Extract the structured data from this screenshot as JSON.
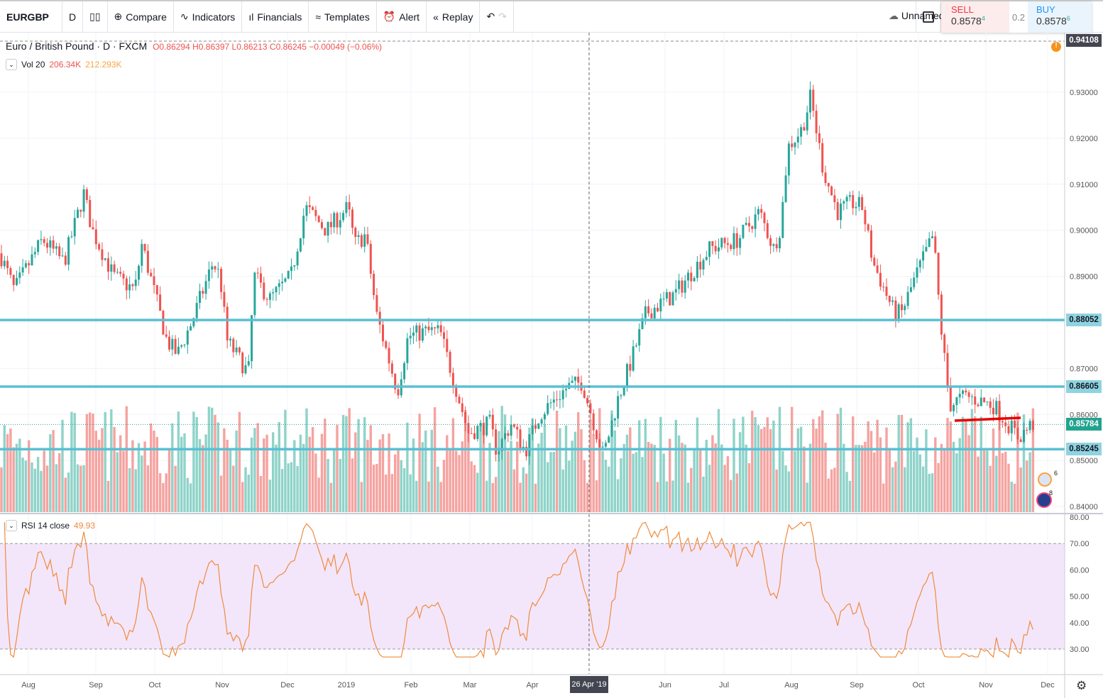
{
  "toolbar": {
    "symbol": "EURGBP",
    "interval": "D",
    "compare": "Compare",
    "indicators": "Indicators",
    "financials": "Financials",
    "templates": "Templates",
    "alert": "Alert",
    "replay": "Replay",
    "layout_name": "Unnamed"
  },
  "trade": {
    "sell_label": "SELL",
    "sell_price": "0.8578",
    "sell_pip": "4",
    "spread": "0.2",
    "buy_label": "BUY",
    "buy_price": "0.8578",
    "buy_pip": "6"
  },
  "legend": {
    "title": "Euro / British Pound · D · FXCM",
    "open": "O0.86294",
    "high": "H0.86397",
    "low": "L0.86213",
    "close": "C0.86245",
    "change": "−0.00049 (−0.06%)"
  },
  "volume": {
    "label": "Vol 20",
    "value": "206.34K",
    "ma": "212.293K"
  },
  "rsi": {
    "label": "RSI 14 close",
    "value": "49.93",
    "upper": 70,
    "lower": 30
  },
  "price_axis": [
    "0.93000",
    "0.92000",
    "0.91000",
    "0.90000",
    "0.89000",
    "0.87000",
    "0.86000",
    "0.85000",
    "0.84000"
  ],
  "rsi_axis": [
    "80.00",
    "70.00",
    "60.00",
    "50.00",
    "40.00",
    "30.00"
  ],
  "tags": {
    "crosshair": "0.94108",
    "level1": "0.88052",
    "level2": "0.86605",
    "current": "0.85784",
    "level3": "0.85245"
  },
  "levels": [
    0.88052,
    0.86605,
    0.85245
  ],
  "time_axis": [
    "Aug",
    "Sep",
    "Oct",
    "Nov",
    "Dec",
    "2019",
    "Feb",
    "Mar",
    "Apr",
    "Jun",
    "Jul",
    "Aug",
    "Sep",
    "Oct",
    "Nov",
    "Dec"
  ],
  "crosshair_date": "26 Apr '19",
  "events": {
    "gb": "6",
    "eu": "8"
  },
  "colors": {
    "up": "#26a69a",
    "down": "#ef5350",
    "level": "#5bbfd2",
    "trendline": "#e60000",
    "rsi": "#f08a3c",
    "rsi_band": "#f3e6fb"
  }
}
